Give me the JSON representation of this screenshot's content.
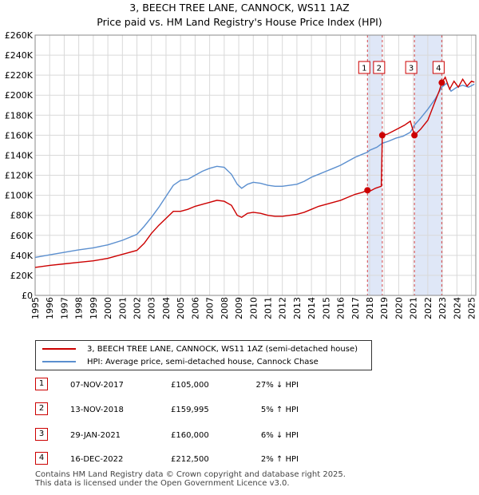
{
  "header": {
    "title": "3, BEECH TREE LANE, CANNOCK, WS11 1AZ",
    "subtitle": "Price paid vs. HM Land Registry's House Price Index (HPI)"
  },
  "chart_data": {
    "type": "line",
    "title": "3, BEECH TREE LANE, CANNOCK, WS11 1AZ",
    "subtitle": "Price paid vs. HM Land Registry's House Price Index (HPI)",
    "xlabel": "",
    "ylabel": "",
    "xlim": [
      1995,
      2025.3
    ],
    "ylim": [
      0,
      260000
    ],
    "x_ticks": [
      "1995",
      "1996",
      "1997",
      "1998",
      "1999",
      "2000",
      "2001",
      "2002",
      "2003",
      "2004",
      "2005",
      "2006",
      "2007",
      "2008",
      "2009",
      "2010",
      "2011",
      "2012",
      "2013",
      "2014",
      "2015",
      "2016",
      "2017",
      "2018",
      "2019",
      "2020",
      "2021",
      "2022",
      "2023",
      "2024",
      "2025"
    ],
    "y_ticks": [
      {
        "value": 0,
        "label": "£0"
      },
      {
        "value": 20000,
        "label": "£20K"
      },
      {
        "value": 40000,
        "label": "£40K"
      },
      {
        "value": 60000,
        "label": "£60K"
      },
      {
        "value": 80000,
        "label": "£80K"
      },
      {
        "value": 100000,
        "label": "£100K"
      },
      {
        "value": 120000,
        "label": "£120K"
      },
      {
        "value": 140000,
        "label": "£140K"
      },
      {
        "value": 160000,
        "label": "£160K"
      },
      {
        "value": 180000,
        "label": "£180K"
      },
      {
        "value": 200000,
        "label": "£200K"
      },
      {
        "value": 220000,
        "label": "£220K"
      },
      {
        "value": 240000,
        "label": "£240K"
      },
      {
        "value": 260000,
        "label": "£260K"
      }
    ],
    "grid": true,
    "series": [
      {
        "name": "3, BEECH TREE LANE, CANNOCK, WS11 1AZ (semi-detached house)",
        "color": "#cc0000",
        "points": [
          [
            1995,
            28000
          ],
          [
            1996,
            30000
          ],
          [
            1997,
            31500
          ],
          [
            1998,
            33000
          ],
          [
            1999,
            34500
          ],
          [
            2000,
            37000
          ],
          [
            2001,
            41000
          ],
          [
            2002,
            45000
          ],
          [
            2002.5,
            52000
          ],
          [
            2003,
            62000
          ],
          [
            2003.5,
            70000
          ],
          [
            2004,
            77000
          ],
          [
            2004.5,
            84000
          ],
          [
            2005,
            84000
          ],
          [
            2005.5,
            86000
          ],
          [
            2006,
            89000
          ],
          [
            2006.5,
            91000
          ],
          [
            2007,
            93000
          ],
          [
            2007.5,
            95000
          ],
          [
            2008,
            94000
          ],
          [
            2008.5,
            90000
          ],
          [
            2008.9,
            80000
          ],
          [
            2009.2,
            78000
          ],
          [
            2009.6,
            82000
          ],
          [
            2010,
            83000
          ],
          [
            2010.5,
            82000
          ],
          [
            2011,
            80000
          ],
          [
            2011.5,
            79000
          ],
          [
            2012,
            79000
          ],
          [
            2012.5,
            80000
          ],
          [
            2013,
            81000
          ],
          [
            2013.5,
            83000
          ],
          [
            2014,
            86000
          ],
          [
            2014.5,
            89000
          ],
          [
            2015,
            91000
          ],
          [
            2015.5,
            93000
          ],
          [
            2016,
            95000
          ],
          [
            2016.5,
            98000
          ],
          [
            2017,
            101000
          ],
          [
            2017.5,
            103000
          ],
          [
            2017.85,
            105000
          ],
          [
            2018,
            104000
          ],
          [
            2018.4,
            107000
          ],
          [
            2018.8,
            109000
          ],
          [
            2018.87,
            159995
          ],
          [
            2019.2,
            161000
          ],
          [
            2019.6,
            164000
          ],
          [
            2020,
            167000
          ],
          [
            2020.4,
            170000
          ],
          [
            2020.8,
            174000
          ],
          [
            2021.08,
            160000
          ],
          [
            2021.5,
            166000
          ],
          [
            2022,
            175000
          ],
          [
            2022.4,
            190000
          ],
          [
            2022.8,
            205000
          ],
          [
            2022.96,
            212500
          ],
          [
            2023.2,
            218000
          ],
          [
            2023.5,
            206000
          ],
          [
            2023.8,
            214000
          ],
          [
            2024.1,
            208000
          ],
          [
            2024.4,
            216000
          ],
          [
            2024.7,
            209000
          ],
          [
            2025,
            214000
          ],
          [
            2025.2,
            213000
          ]
        ]
      },
      {
        "name": "HPI: Average price, semi-detached house, Cannock Chase",
        "color": "#5b8fcf",
        "points": [
          [
            1995,
            38000
          ],
          [
            1996,
            40500
          ],
          [
            1997,
            43000
          ],
          [
            1998,
            45500
          ],
          [
            1999,
            47500
          ],
          [
            2000,
            50500
          ],
          [
            2001,
            55000
          ],
          [
            2002,
            61000
          ],
          [
            2002.5,
            69000
          ],
          [
            2003,
            78000
          ],
          [
            2003.5,
            88000
          ],
          [
            2004,
            99000
          ],
          [
            2004.5,
            110000
          ],
          [
            2005,
            115000
          ],
          [
            2005.5,
            116000
          ],
          [
            2006,
            120000
          ],
          [
            2006.5,
            124000
          ],
          [
            2007,
            127000
          ],
          [
            2007.5,
            129000
          ],
          [
            2008,
            128000
          ],
          [
            2008.5,
            121000
          ],
          [
            2008.9,
            111000
          ],
          [
            2009.2,
            107000
          ],
          [
            2009.6,
            111000
          ],
          [
            2010,
            113000
          ],
          [
            2010.5,
            112000
          ],
          [
            2011,
            110000
          ],
          [
            2011.5,
            109000
          ],
          [
            2012,
            109000
          ],
          [
            2012.5,
            110000
          ],
          [
            2013,
            111000
          ],
          [
            2013.5,
            114000
          ],
          [
            2014,
            118000
          ],
          [
            2014.5,
            121000
          ],
          [
            2015,
            124000
          ],
          [
            2015.5,
            127000
          ],
          [
            2016,
            130000
          ],
          [
            2016.5,
            134000
          ],
          [
            2017,
            138000
          ],
          [
            2017.5,
            141000
          ],
          [
            2017.85,
            143000
          ],
          [
            2018,
            145000
          ],
          [
            2018.5,
            148000
          ],
          [
            2018.87,
            152000
          ],
          [
            2019.3,
            154000
          ],
          [
            2019.8,
            157000
          ],
          [
            2020.3,
            159000
          ],
          [
            2020.8,
            163000
          ],
          [
            2021.08,
            170000
          ],
          [
            2021.5,
            177000
          ],
          [
            2022,
            186000
          ],
          [
            2022.5,
            196000
          ],
          [
            2022.96,
            208000
          ],
          [
            2023.3,
            212000
          ],
          [
            2023.6,
            204000
          ],
          [
            2024,
            208000
          ],
          [
            2024.4,
            210000
          ],
          [
            2024.8,
            208000
          ],
          [
            2025.2,
            211000
          ]
        ]
      }
    ],
    "shaded_periods": [
      {
        "start": 2017.85,
        "end": 2018.87
      },
      {
        "start": 2021.08,
        "end": 2022.96
      }
    ],
    "transactions": [
      {
        "id": "1",
        "date": "07-NOV-2017",
        "x": 2017.85,
        "price": 105000,
        "price_label": "£105,000",
        "delta": "27% ↓ HPI"
      },
      {
        "id": "2",
        "date": "13-NOV-2018",
        "x": 2018.87,
        "price": 159995,
        "price_label": "£159,995",
        "delta": "5% ↑ HPI"
      },
      {
        "id": "3",
        "date": "29-JAN-2021",
        "x": 2021.08,
        "price": 160000,
        "price_label": "£160,000",
        "delta": "6% ↓ HPI"
      },
      {
        "id": "4",
        "date": "16-DEC-2022",
        "x": 2022.96,
        "price": 212500,
        "price_label": "£212,500",
        "delta": "2% ↑ HPI"
      }
    ],
    "legend_position": "below-chart"
  },
  "legend": {
    "items": [
      {
        "label": "3, BEECH TREE LANE, CANNOCK, WS11 1AZ (semi-detached house)",
        "color": "#cc0000"
      },
      {
        "label": "HPI: Average price, semi-detached house, Cannock Chase",
        "color": "#5b8fcf"
      }
    ]
  },
  "footer": {
    "line1": "Contains HM Land Registry data © Crown copyright and database right 2025.",
    "line2": "This data is licensed under the Open Government Licence v3.0."
  }
}
